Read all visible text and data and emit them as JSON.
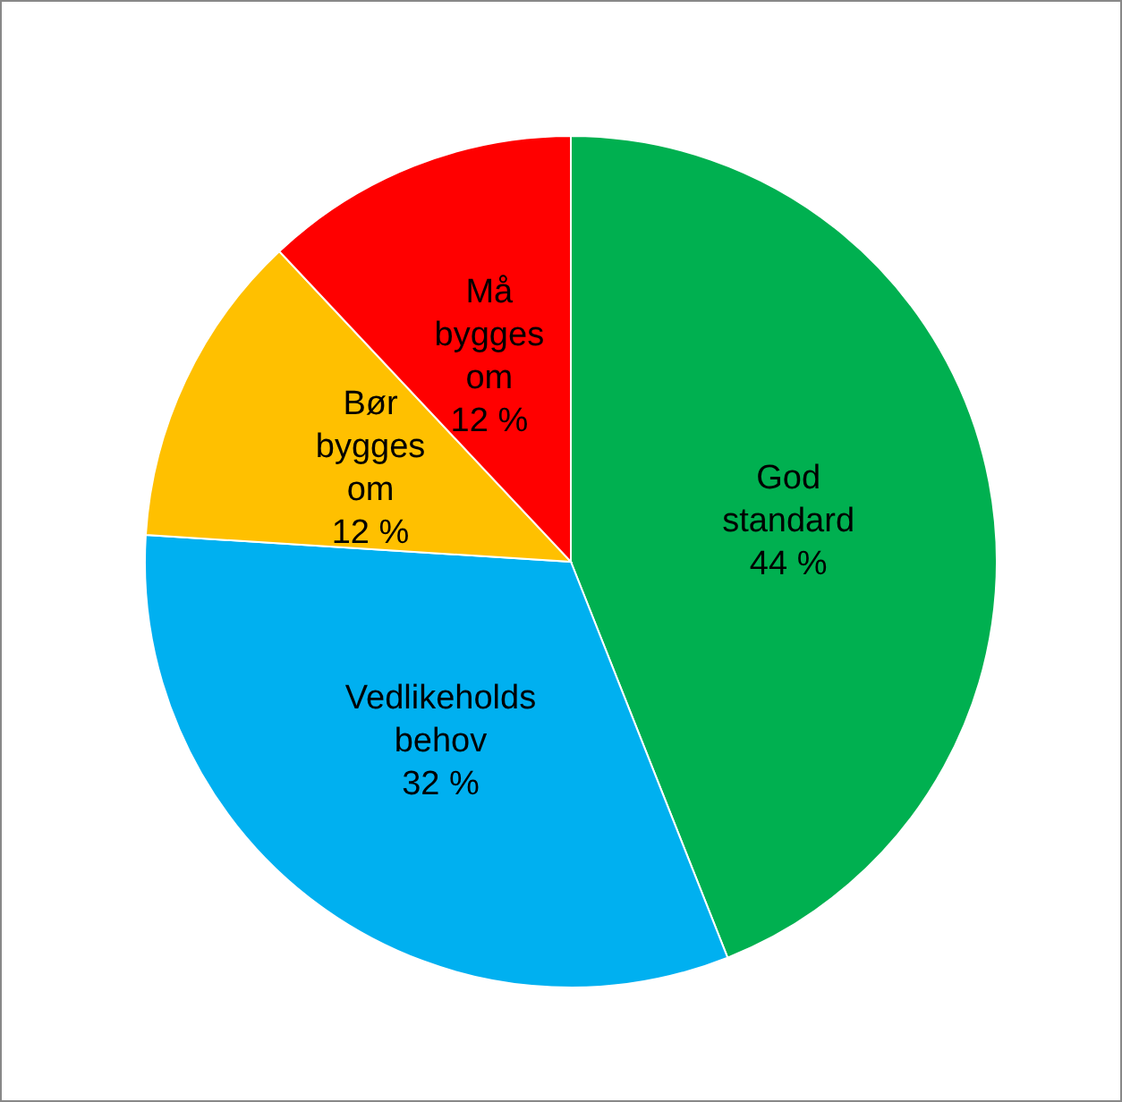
{
  "chart_data": {
    "type": "pie",
    "categories": [
      "God standard",
      "Vedlikeholds behov",
      "Bør bygges om",
      "Må bygges om"
    ],
    "values": [
      44,
      32,
      12,
      12
    ],
    "colors": [
      "#00b050",
      "#00b0f0",
      "#ffc000",
      "#ff0000"
    ],
    "value_labels": [
      "44 %",
      "32 %",
      "12 %",
      "12 %"
    ],
    "legend": false
  }
}
